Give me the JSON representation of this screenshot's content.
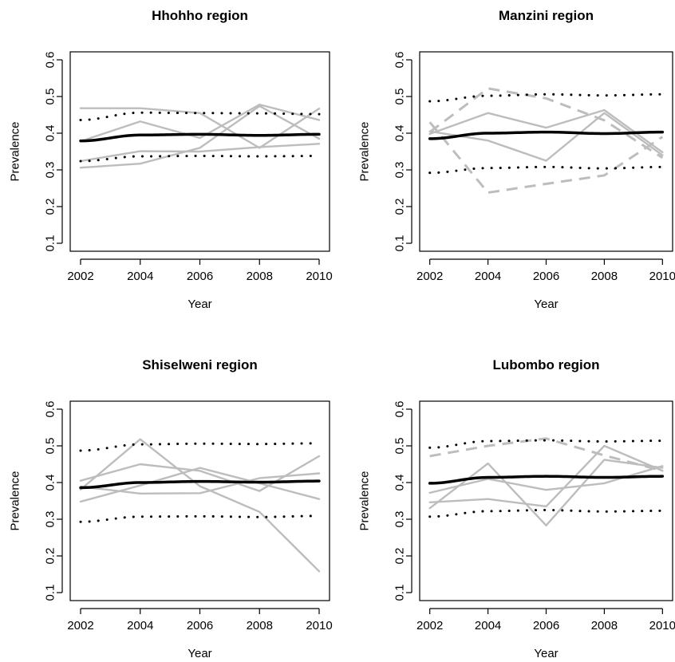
{
  "chart_data": [
    {
      "type": "line",
      "title": "Hhohho region",
      "xlabel": "Year",
      "ylabel": "Prevalence",
      "xlim": [
        2002,
        2010
      ],
      "ylim": [
        0.1,
        0.6
      ],
      "xticks": [
        "2002",
        "2004",
        "2006",
        "2008",
        "2010"
      ],
      "yticks": [
        "0.1",
        "0.2",
        "0.3",
        "0.4",
        "0.5",
        "0.6"
      ],
      "x": [
        2002,
        2004,
        2006,
        2008,
        2010
      ],
      "series": [
        {
          "style": "thick-black",
          "values": [
            0.379,
            0.395,
            0.397,
            0.394,
            0.397
          ]
        },
        {
          "style": "dotted-black",
          "values": [
            0.436,
            0.456,
            0.455,
            0.454,
            0.452
          ]
        },
        {
          "style": "dotted-black",
          "values": [
            0.324,
            0.337,
            0.338,
            0.337,
            0.338
          ]
        },
        {
          "style": "grey",
          "values": [
            0.468,
            0.468,
            0.455,
            0.36,
            0.467
          ]
        },
        {
          "style": "grey",
          "values": [
            0.378,
            0.432,
            0.387,
            0.478,
            0.436
          ]
        },
        {
          "style": "grey",
          "values": [
            0.306,
            0.317,
            0.36,
            0.474,
            0.385
          ]
        },
        {
          "style": "grey",
          "values": [
            0.324,
            0.351,
            0.35,
            0.362,
            0.371
          ]
        }
      ]
    },
    {
      "type": "line",
      "title": "Manzini region",
      "xlabel": "Year",
      "ylabel": "Prevalence",
      "xlim": [
        2002,
        2010
      ],
      "ylim": [
        0.1,
        0.6
      ],
      "xticks": [
        "2002",
        "2004",
        "2006",
        "2008",
        "2010"
      ],
      "yticks": [
        "0.1",
        "0.2",
        "0.3",
        "0.4",
        "0.5",
        "0.6"
      ],
      "x": [
        2002,
        2004,
        2006,
        2008,
        2010
      ],
      "series": [
        {
          "style": "thick-black",
          "values": [
            0.385,
            0.4,
            0.403,
            0.399,
            0.403
          ]
        },
        {
          "style": "dotted-black",
          "values": [
            0.487,
            0.502,
            0.506,
            0.503,
            0.506
          ]
        },
        {
          "style": "dotted-black",
          "values": [
            0.292,
            0.305,
            0.308,
            0.304,
            0.308
          ]
        },
        {
          "style": "grey",
          "values": [
            0.398,
            0.455,
            0.415,
            0.463,
            0.348
          ]
        },
        {
          "style": "grey",
          "values": [
            0.405,
            0.38,
            0.325,
            0.455,
            0.34
          ]
        },
        {
          "style": "grey-dashed",
          "values": [
            0.403,
            0.522,
            0.495,
            0.435,
            0.333
          ]
        },
        {
          "style": "grey-dashed",
          "values": [
            0.43,
            0.238,
            0.262,
            0.285,
            0.39
          ]
        }
      ]
    },
    {
      "type": "line",
      "title": "Shiselweni region",
      "xlabel": "Year",
      "ylabel": "Prevalence",
      "xlim": [
        2002,
        2010
      ],
      "ylim": [
        0.1,
        0.6
      ],
      "xticks": [
        "2002",
        "2004",
        "2006",
        "2008",
        "2010"
      ],
      "yticks": [
        "0.1",
        "0.2",
        "0.3",
        "0.4",
        "0.5",
        "0.6"
      ],
      "x": [
        2002,
        2004,
        2006,
        2008,
        2010
      ],
      "series": [
        {
          "style": "thick-black",
          "values": [
            0.386,
            0.4,
            0.403,
            0.401,
            0.404
          ]
        },
        {
          "style": "dotted-black",
          "values": [
            0.487,
            0.504,
            0.506,
            0.505,
            0.507
          ]
        },
        {
          "style": "dotted-black",
          "values": [
            0.293,
            0.307,
            0.308,
            0.306,
            0.309
          ]
        },
        {
          "style": "grey",
          "values": [
            0.405,
            0.45,
            0.432,
            0.377,
            0.472
          ]
        },
        {
          "style": "grey",
          "values": [
            0.381,
            0.518,
            0.39,
            0.32,
            0.158
          ]
        },
        {
          "style": "grey",
          "values": [
            0.348,
            0.392,
            0.44,
            0.398,
            0.355
          ]
        },
        {
          "style": "grey",
          "values": [
            0.389,
            0.37,
            0.371,
            0.412,
            0.425
          ]
        }
      ]
    },
    {
      "type": "line",
      "title": "Lubombo region",
      "xlabel": "Year",
      "ylabel": "Prevalence",
      "xlim": [
        2002,
        2010
      ],
      "ylim": [
        0.1,
        0.6
      ],
      "xticks": [
        "2002",
        "2004",
        "2006",
        "2008",
        "2010"
      ],
      "yticks": [
        "0.1",
        "0.2",
        "0.3",
        "0.4",
        "0.5",
        "0.6"
      ],
      "x": [
        2002,
        2004,
        2006,
        2008,
        2010
      ],
      "series": [
        {
          "style": "thick-black",
          "values": [
            0.398,
            0.414,
            0.417,
            0.414,
            0.417
          ]
        },
        {
          "style": "dotted-black",
          "values": [
            0.495,
            0.513,
            0.515,
            0.512,
            0.514
          ]
        },
        {
          "style": "dotted-black",
          "values": [
            0.307,
            0.322,
            0.325,
            0.321,
            0.323
          ]
        },
        {
          "style": "grey-dashed",
          "values": [
            0.472,
            0.5,
            0.52,
            0.474,
            0.432
          ]
        },
        {
          "style": "grey",
          "values": [
            0.372,
            0.41,
            0.38,
            0.398,
            0.445
          ]
        },
        {
          "style": "grey",
          "values": [
            0.346,
            0.355,
            0.335,
            0.5,
            0.432
          ]
        },
        {
          "style": "grey",
          "values": [
            0.33,
            0.452,
            0.283,
            0.462,
            0.44
          ]
        }
      ]
    }
  ]
}
